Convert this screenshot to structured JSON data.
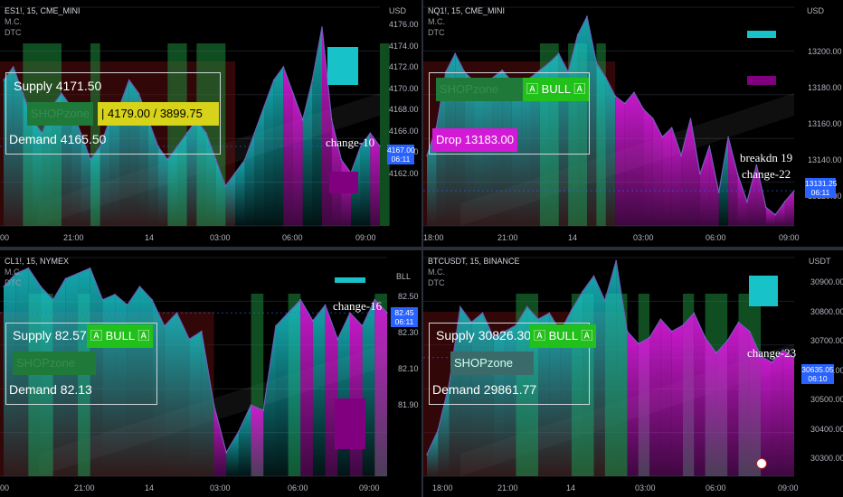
{
  "colors": {
    "teal": "#17c2c9",
    "magenta": "#d21ad6",
    "green": "#1f7a3a",
    "red": "#6a1010",
    "bull": "#22c01a",
    "yellow": "#d7d21a",
    "purple": "#800080",
    "blue": "#2962ff"
  },
  "panels": [
    {
      "id": "es",
      "title": "ES1!, 15, CME_MINI",
      "sub1": "M.C.",
      "sub2": "DTC",
      "unit": "USD",
      "yticks": [
        "4176.00",
        "4174.00",
        "4172.00",
        "4170.00",
        "4168.00",
        "4166.00",
        "4164.00",
        "4162.00"
      ],
      "xticks": [
        "00",
        "21:00",
        "14",
        "03:00",
        "06:00",
        "09:00"
      ],
      "price_line1": "4167.00",
      "price_line2": "06:11",
      "supply": "Supply  4171.50",
      "zone": "SHOPzone",
      "zone_range": "|  4179.00 / 3899.75",
      "demand": "Demand  4165.50",
      "change": "change-10",
      "chart_data": {
        "type": "area",
        "ylim": [
          4161,
          4177.5
        ],
        "values": [
          4172,
          4173,
          4171,
          4169,
          4168,
          4170,
          4171,
          4170,
          4168,
          4166,
          4167,
          4169,
          4170,
          4172,
          4171,
          4169,
          4167,
          4166,
          4167,
          4168,
          4169,
          4168,
          4166,
          4164,
          4165,
          4166,
          4168,
          4170,
          4172,
          4173,
          4171,
          4169,
          4172,
          4176,
          4169,
          4166,
          4165,
          4167,
          4168,
          4167
        ]
      }
    },
    {
      "id": "nq",
      "title": "NQ1!, 15, CME_MINI",
      "sub1": "M.C.",
      "sub2": "DTC",
      "unit": "USD",
      "yticks": [
        "13200.00",
        "13180.00",
        "13160.00",
        "13140.00",
        "13120.00"
      ],
      "xticks": [
        "18:00",
        "21:00",
        "14",
        "03:00",
        "06:00",
        "09:00"
      ],
      "price_line1": "13131.25",
      "price_line2": "06:11",
      "zone": "SHOPzone",
      "bull": "🄰 BULL 🄰",
      "drop": "Drop  13183.00",
      "change": "breakdn 19\nchange-22",
      "chart_data": {
        "type": "area",
        "ylim": [
          13112,
          13230
        ],
        "values": [
          13150,
          13165,
          13195,
          13205,
          13195,
          13190,
          13188,
          13192,
          13196,
          13190,
          13188,
          13192,
          13196,
          13200,
          13205,
          13195,
          13215,
          13225,
          13200,
          13192,
          13182,
          13178,
          13184,
          13175,
          13170,
          13160,
          13165,
          13150,
          13170,
          13140,
          13155,
          13130,
          13160,
          13140,
          13125,
          13145,
          13122,
          13118,
          13125,
          13131
        ]
      }
    },
    {
      "id": "cl",
      "title": "CL1!, 15, NYMEX",
      "sub1": "M.C.",
      "sub2": "DTC",
      "unit": "BLL",
      "yticks": [
        "82.50",
        "82.30",
        "82.10",
        "81.90"
      ],
      "xticks": [
        "00",
        "21:00",
        "14",
        "03:00",
        "06:00",
        "09:00"
      ],
      "price_line1": "82.45",
      "price_line2": "06:11",
      "supply": "Supply  82.57",
      "bull": "🄰 BULL 🄰",
      "zone": "SHOPzone",
      "demand": "Demand  82.13",
      "change": "change-16",
      "chart_data": {
        "type": "area",
        "ylim": [
          81.83,
          82.66
        ],
        "values": [
          82.55,
          82.6,
          82.62,
          82.55,
          82.5,
          82.58,
          82.6,
          82.62,
          82.5,
          82.52,
          82.48,
          82.55,
          82.5,
          82.4,
          82.45,
          82.35,
          82.38,
          82.1,
          81.92,
          82.0,
          82.1,
          82.08,
          82.4,
          82.45,
          82.5,
          82.42,
          82.48,
          82.35,
          82.45,
          82.4,
          82.5,
          82.45
        ]
      }
    },
    {
      "id": "btc",
      "title": "BTCUSDT, 15, BINANCE",
      "sub1": "M.C.",
      "sub2": "DTC",
      "unit": "USDT",
      "yticks": [
        "30900.00",
        "30800.00",
        "30700.00",
        "30600.00",
        "30500.00",
        "30400.00",
        "30300.00"
      ],
      "xticks": [
        "18:00",
        "21:00",
        "14",
        "03:00",
        "06:00",
        "09:00"
      ],
      "price_line1": "30635.05",
      "price_line2": "06:10",
      "supply": "Supply  30826.30",
      "bull": "🄰 BULL 🄰",
      "zone": "SHOPzone",
      "demand": "Demand  29861.77",
      "change": "change-23",
      "chart_data": {
        "type": "area",
        "ylim": [
          30250,
          30960
        ],
        "values": [
          30320,
          30400,
          30550,
          30800,
          30750,
          30780,
          30700,
          30720,
          30740,
          30800,
          30760,
          30780,
          30720,
          30790,
          30850,
          30900,
          30820,
          30950,
          30720,
          30680,
          30700,
          30760,
          30720,
          30740,
          30780,
          30700,
          30650,
          30690,
          30750,
          30720,
          30640,
          30620,
          30660,
          30635
        ]
      }
    }
  ]
}
